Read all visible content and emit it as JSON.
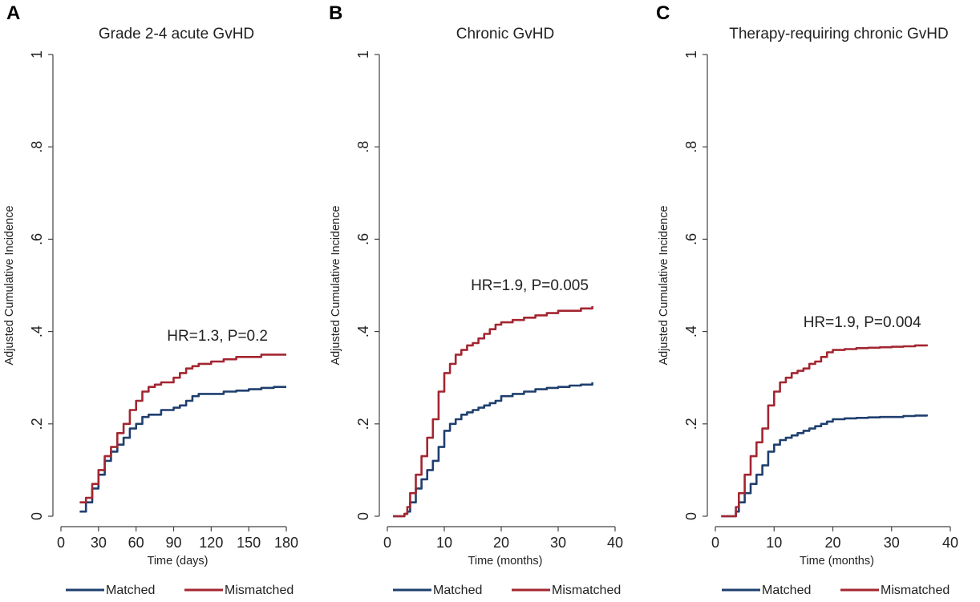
{
  "chart_data": [
    {
      "panel": "A",
      "type": "line",
      "title": "Grade 2-4 acute GvHD",
      "xlabel": "Time (days)",
      "ylabel": "Adjusted Cumulative Incidence",
      "xlim": [
        0,
        180
      ],
      "ylim": [
        0,
        1
      ],
      "xticks": [
        0,
        30,
        60,
        90,
        120,
        150,
        180
      ],
      "yticks": [
        0,
        0.2,
        0.4,
        0.6,
        0.8,
        1
      ],
      "ytick_labels": [
        "0",
        ".2",
        ".4",
        ".6",
        ".8",
        "1"
      ],
      "annotation": {
        "text": "HR=1.3, P=0.2",
        "x": 125,
        "y": 0.38
      },
      "legend": [
        "Matched",
        "Mismatched"
      ],
      "series": [
        {
          "name": "Matched",
          "color": "#1f3f6e",
          "x": [
            15,
            20,
            25,
            30,
            35,
            40,
            45,
            50,
            55,
            60,
            65,
            70,
            75,
            80,
            90,
            95,
            100,
            105,
            110,
            120,
            130,
            140,
            150,
            160,
            170,
            180
          ],
          "y": [
            0.01,
            0.03,
            0.06,
            0.09,
            0.12,
            0.14,
            0.155,
            0.17,
            0.19,
            0.2,
            0.215,
            0.22,
            0.22,
            0.23,
            0.235,
            0.24,
            0.25,
            0.26,
            0.265,
            0.265,
            0.27,
            0.272,
            0.275,
            0.278,
            0.28,
            0.28
          ]
        },
        {
          "name": "Mismatched",
          "color": "#a32630",
          "x": [
            15,
            20,
            25,
            30,
            35,
            40,
            45,
            50,
            55,
            60,
            65,
            70,
            75,
            80,
            90,
            95,
            100,
            105,
            110,
            120,
            130,
            140,
            150,
            160,
            170,
            180
          ],
          "y": [
            0.03,
            0.04,
            0.07,
            0.1,
            0.13,
            0.15,
            0.18,
            0.2,
            0.23,
            0.25,
            0.27,
            0.28,
            0.285,
            0.29,
            0.3,
            0.31,
            0.32,
            0.325,
            0.33,
            0.335,
            0.34,
            0.345,
            0.345,
            0.35,
            0.35,
            0.35
          ]
        }
      ]
    },
    {
      "panel": "B",
      "type": "line",
      "title": "Chronic GvHD",
      "xlabel": "Time (months)",
      "ylabel": "Adjusted Cumulative Incidence",
      "xlim": [
        0,
        40
      ],
      "ylim": [
        0,
        1
      ],
      "xticks": [
        0,
        10,
        20,
        30,
        40
      ],
      "yticks": [
        0,
        0.2,
        0.4,
        0.6,
        0.8,
        1
      ],
      "ytick_labels": [
        "0",
        ".2",
        ".4",
        ".6",
        ".8",
        "1"
      ],
      "annotation": {
        "text": "HR=1.9, P=0.005",
        "x": 25,
        "y": 0.49
      },
      "legend": [
        "Matched",
        "Mismatched"
      ],
      "series": [
        {
          "name": "Matched",
          "color": "#1f3f6e",
          "x": [
            1,
            2,
            3,
            3.5,
            4,
            5,
            6,
            7,
            8,
            9,
            10,
            11,
            12,
            13,
            14,
            15,
            16,
            17,
            18,
            19,
            20,
            22,
            24,
            26,
            28,
            30,
            32,
            34,
            36
          ],
          "y": [
            0,
            0,
            0.005,
            0.01,
            0.03,
            0.06,
            0.08,
            0.1,
            0.12,
            0.15,
            0.185,
            0.2,
            0.21,
            0.22,
            0.225,
            0.23,
            0.235,
            0.24,
            0.245,
            0.25,
            0.26,
            0.265,
            0.27,
            0.275,
            0.278,
            0.28,
            0.283,
            0.285,
            0.29
          ]
        },
        {
          "name": "Mismatched",
          "color": "#a32630",
          "x": [
            1,
            2,
            3,
            3.5,
            4,
            5,
            6,
            7,
            8,
            9,
            10,
            11,
            12,
            13,
            14,
            15,
            16,
            17,
            18,
            19,
            20,
            22,
            24,
            26,
            28,
            30,
            32,
            34,
            36
          ],
          "y": [
            0,
            0,
            0.005,
            0.02,
            0.05,
            0.09,
            0.13,
            0.17,
            0.21,
            0.27,
            0.31,
            0.33,
            0.35,
            0.36,
            0.37,
            0.375,
            0.385,
            0.395,
            0.405,
            0.415,
            0.42,
            0.425,
            0.43,
            0.435,
            0.44,
            0.445,
            0.445,
            0.45,
            0.455
          ]
        }
      ]
    },
    {
      "panel": "C",
      "type": "line",
      "title": "Therapy-requiring chronic GvHD",
      "xlabel": "Time (months)",
      "ylabel": "Adjusted Cumulative Incidence",
      "xlim": [
        0,
        40
      ],
      "ylim": [
        0,
        1
      ],
      "xticks": [
        0,
        10,
        20,
        30,
        40
      ],
      "yticks": [
        0,
        0.2,
        0.4,
        0.6,
        0.8,
        1
      ],
      "ytick_labels": [
        "0",
        ".2",
        ".4",
        ".6",
        ".8",
        "1"
      ],
      "annotation": {
        "text": "HR=1.9, P=0.004",
        "x": 25,
        "y": 0.41
      },
      "legend": [
        "Matched",
        "Mismatched"
      ],
      "series": [
        {
          "name": "Matched",
          "color": "#1f3f6e",
          "x": [
            1,
            2,
            3,
            3.5,
            4,
            5,
            6,
            7,
            8,
            9,
            10,
            11,
            12,
            13,
            14,
            15,
            16,
            17,
            18,
            19,
            20,
            22,
            24,
            26,
            28,
            30,
            32,
            34,
            36
          ],
          "y": [
            0,
            0,
            0,
            0.01,
            0.03,
            0.05,
            0.07,
            0.09,
            0.11,
            0.14,
            0.155,
            0.165,
            0.17,
            0.175,
            0.18,
            0.185,
            0.19,
            0.195,
            0.2,
            0.205,
            0.21,
            0.212,
            0.213,
            0.214,
            0.215,
            0.215,
            0.217,
            0.218,
            0.22
          ]
        },
        {
          "name": "Mismatched",
          "color": "#a32630",
          "x": [
            1,
            2,
            3,
            3.5,
            4,
            5,
            6,
            7,
            8,
            9,
            10,
            11,
            12,
            13,
            14,
            15,
            16,
            17,
            18,
            19,
            20,
            22,
            24,
            26,
            28,
            30,
            32,
            34,
            36
          ],
          "y": [
            0,
            0,
            0,
            0.02,
            0.05,
            0.09,
            0.13,
            0.16,
            0.19,
            0.24,
            0.27,
            0.29,
            0.3,
            0.31,
            0.315,
            0.32,
            0.33,
            0.335,
            0.345,
            0.355,
            0.36,
            0.362,
            0.364,
            0.365,
            0.366,
            0.367,
            0.368,
            0.37,
            0.372
          ]
        }
      ]
    }
  ]
}
